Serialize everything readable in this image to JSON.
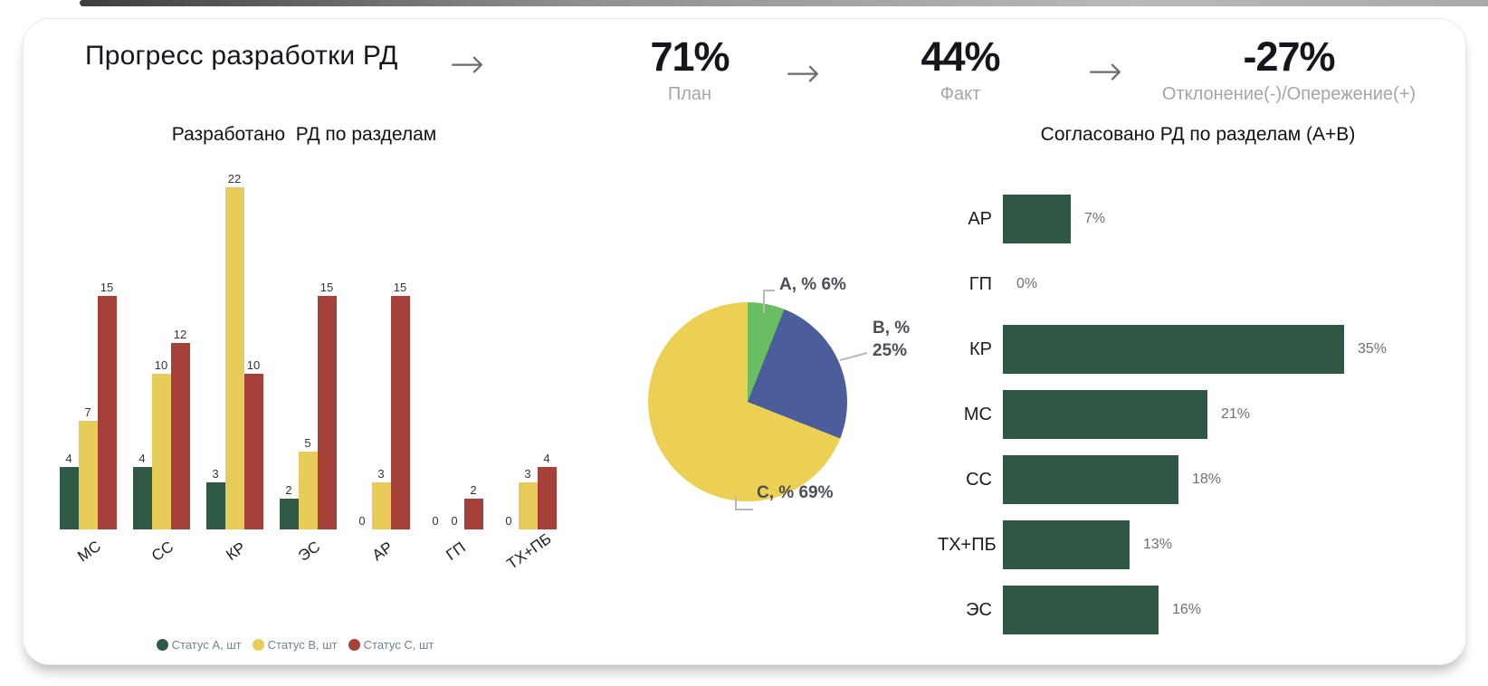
{
  "header": {
    "title": "Прогресс разработки РД",
    "arrow_icon": "→",
    "kpis": [
      {
        "value": "71%",
        "label": "План"
      },
      {
        "value": "44%",
        "label": "Факт"
      },
      {
        "value": "-27%",
        "label": "Отклонение(-)/Опережение(+)"
      }
    ]
  },
  "chart_data": [
    {
      "type": "bar",
      "title": "Разработано  РД по разделам",
      "categories": [
        "МС",
        "СС",
        "КР",
        "ЭС",
        "АР",
        "ГП",
        "ТХ+ПБ"
      ],
      "series": [
        {
          "name": "Статус А, шт",
          "color": "#2e5a45",
          "values": [
            4,
            4,
            3,
            2,
            0,
            0,
            0
          ]
        },
        {
          "name": "Статус В, шт",
          "color": "#e8cc59",
          "values": [
            7,
            10,
            22,
            5,
            3,
            0,
            3
          ]
        },
        {
          "name": "Статус С, шт",
          "color": "#a64139",
          "values": [
            15,
            12,
            10,
            15,
            15,
            2,
            4
          ]
        }
      ],
      "ylim": [
        0,
        22
      ],
      "grid": false,
      "value_labels": true,
      "legend_position": "bottom"
    },
    {
      "type": "pie",
      "start_angle_deg": 0,
      "slices": [
        {
          "name": "A, %",
          "value": 6,
          "label": "A, % 6%",
          "color": "#6bbd61"
        },
        {
          "name": "B, %",
          "value": 25,
          "label": "B, % 25%",
          "color": "#4c5d9b"
        },
        {
          "name": "C, %",
          "value": 69,
          "label": "C, % 69%",
          "color": "#ecd054"
        }
      ]
    },
    {
      "type": "bar",
      "orientation": "horizontal",
      "title": "Согласовано РД по разделам (А+В)",
      "categories": [
        "АР",
        "ГП",
        "КР",
        "МС",
        "СС",
        "ТХ+ПБ",
        "ЭС"
      ],
      "values": [
        7,
        0,
        35,
        21,
        18,
        13,
        16
      ],
      "value_suffix": "%",
      "xlim": [
        0,
        35
      ],
      "color": "#2e5744",
      "grid": false
    }
  ]
}
